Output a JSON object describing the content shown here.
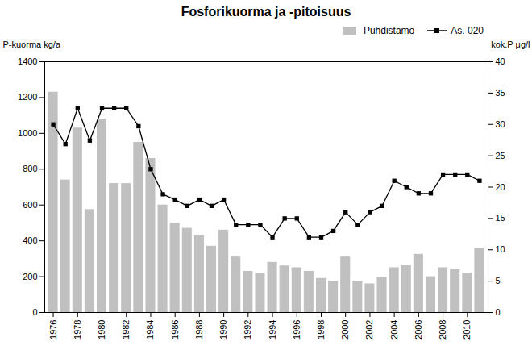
{
  "chart_data": {
    "type": "bar",
    "title": "Fosforikuorma ja -pitoisuus",
    "ylabel": "P-kuorma kg/a",
    "y2label": "kok.P μg/l",
    "x": [
      1976,
      1977,
      1978,
      1979,
      1980,
      1981,
      1982,
      1983,
      1984,
      1985,
      1986,
      1987,
      1988,
      1989,
      1990,
      1991,
      1992,
      1993,
      1994,
      1995,
      1996,
      1997,
      1998,
      1999,
      2000,
      2001,
      2002,
      2003,
      2004,
      2005,
      2006,
      2007,
      2008,
      2009,
      2010,
      2011
    ],
    "series": [
      {
        "name": "Puhdistamo",
        "type": "bar",
        "color": "#c0c0c0",
        "values": [
          1230,
          740,
          1030,
          575,
          1080,
          720,
          720,
          950,
          860,
          600,
          500,
          470,
          430,
          370,
          460,
          310,
          230,
          220,
          280,
          260,
          250,
          230,
          190,
          175,
          310,
          175,
          160,
          195,
          250,
          265,
          325,
          200,
          250,
          240,
          220,
          360
        ]
      },
      {
        "name": "As. 020",
        "type": "line",
        "color": "#000000",
        "marker": "square",
        "values": [
          1050,
          940,
          1140,
          960,
          1140,
          1140,
          1140,
          1040,
          800,
          660,
          630,
          595,
          630,
          595,
          630,
          490,
          490,
          490,
          420,
          525,
          525,
          420,
          420,
          455,
          560,
          490,
          560,
          595,
          735,
          700,
          665,
          665,
          770,
          770,
          770,
          735
        ]
      }
    ],
    "xlim": [
      1975.3,
      2011.7
    ],
    "xticks": [
      1976,
      1978,
      1980,
      1982,
      1984,
      1986,
      1988,
      1990,
      1992,
      1994,
      1996,
      1998,
      2000,
      2002,
      2004,
      2006,
      2008,
      2010
    ],
    "ylim": [
      0,
      1400
    ],
    "yticks": [
      0,
      200,
      400,
      600,
      800,
      1000,
      1200,
      1400
    ],
    "y2lim": [
      0,
      40
    ],
    "y2ticks": [
      0,
      5,
      10,
      15,
      20,
      25,
      30,
      35,
      40
    ],
    "grid": false,
    "legend": "upper right"
  }
}
